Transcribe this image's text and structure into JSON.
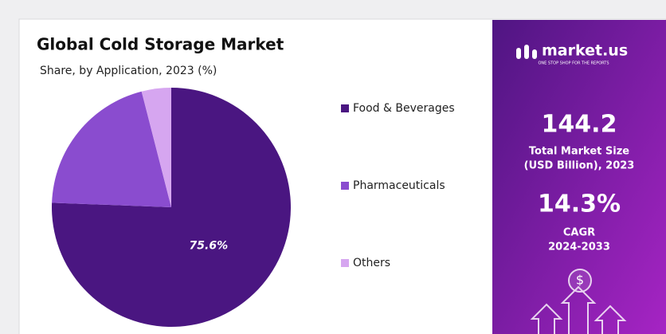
{
  "chart_data": {
    "type": "pie",
    "title": "Global Cold Storage Market",
    "subtitle": "Share, by Application, 2023 (%)",
    "categories": [
      "Food & Beverages",
      "Pharmaceuticals",
      "Others"
    ],
    "values": [
      75.6,
      20.4,
      4.0
    ],
    "value_labels": [
      "75.6%",
      null,
      null
    ],
    "colors": [
      "#4a1681",
      "#8a4ccf",
      "#d6a6f0"
    ],
    "legend": "right"
  },
  "panel": {
    "brand": "market.us",
    "tagline": "ONE STOP SHOP FOR THE REPORTS",
    "market_size": "144.2",
    "market_size_label_1": "Total Market Size",
    "market_size_label_2": "(USD Billion), 2023",
    "cagr": "14.3%",
    "cagr_label": "CAGR",
    "cagr_period": "2024-2033"
  }
}
